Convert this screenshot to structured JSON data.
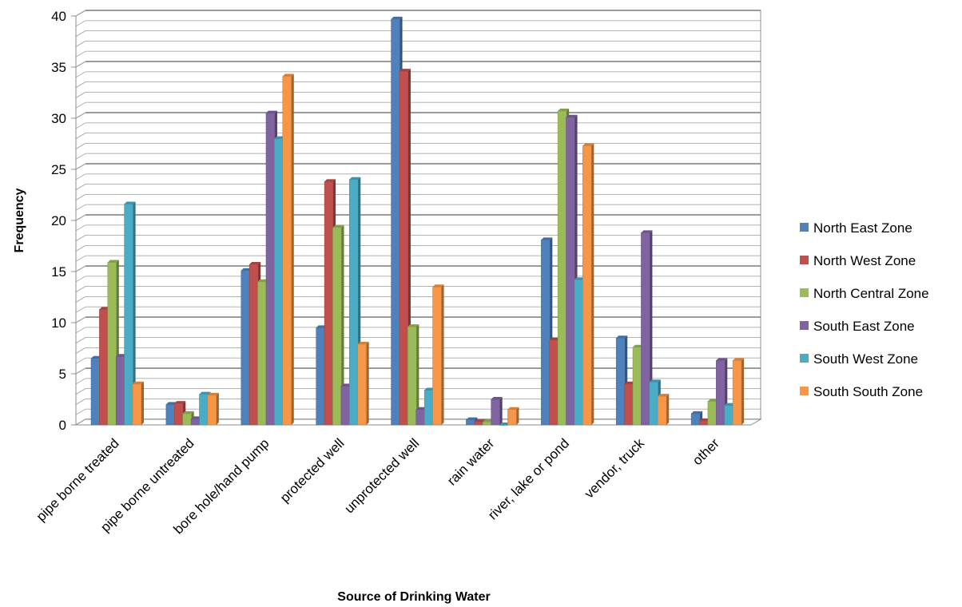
{
  "chart_data": {
    "type": "bar",
    "title": "",
    "xlabel": "Source of Drinking Water",
    "ylabel": "Frequency",
    "ylim": [
      0,
      40
    ],
    "yticks": [
      0,
      5,
      10,
      15,
      20,
      25,
      30,
      35,
      40
    ],
    "grid": true,
    "legend_position": "right",
    "categories": [
      "pipe borne treated",
      "pipe borne untreated",
      "bore hole/hand pump",
      "protected well",
      "unprotected well",
      "rain water",
      "river, lake or pond",
      "vendor, truck",
      "other"
    ],
    "series": [
      {
        "name": "North East Zone",
        "color": "#4f81bd",
        "values": [
          6.5,
          2.0,
          15.1,
          9.5,
          39.7,
          0.5,
          18.1,
          8.5,
          1.1
        ]
      },
      {
        "name": "North West Zone",
        "color": "#c0504d",
        "values": [
          11.3,
          2.1,
          15.7,
          23.8,
          34.6,
          0.3,
          8.3,
          4.0,
          0.4
        ]
      },
      {
        "name": "North Central Zone",
        "color": "#9bbb59",
        "values": [
          15.9,
          1.1,
          14.0,
          19.3,
          9.6,
          0.3,
          30.7,
          7.6,
          2.3
        ]
      },
      {
        "name": "South East Zone",
        "color": "#8064a2",
        "values": [
          6.7,
          0.6,
          30.5,
          3.8,
          1.5,
          2.5,
          30.1,
          18.8,
          6.3
        ]
      },
      {
        "name": "South West Zone",
        "color": "#4bacc6",
        "values": [
          21.6,
          3.0,
          28.0,
          24.0,
          3.4,
          0.0,
          14.2,
          4.2,
          1.9
        ]
      },
      {
        "name": "South South Zone",
        "color": "#f79646",
        "values": [
          4.0,
          2.9,
          34.1,
          7.9,
          13.5,
          1.5,
          27.3,
          2.8,
          6.3
        ]
      }
    ]
  }
}
